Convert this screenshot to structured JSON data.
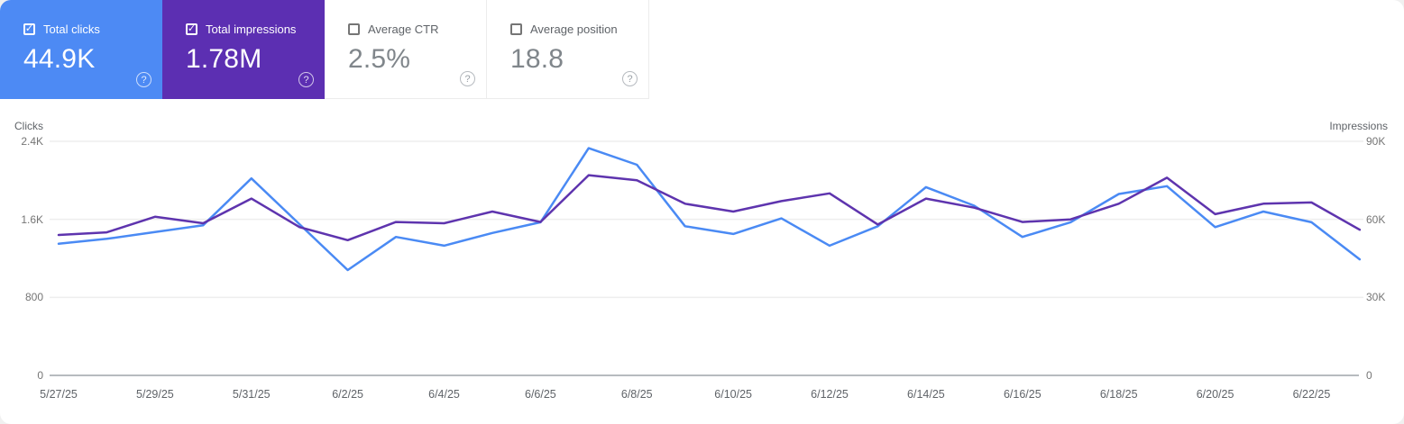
{
  "cards": [
    {
      "label": "Total clicks",
      "value": "44.9K",
      "checked": true,
      "bg": "#4d8af4",
      "help_icon": "?"
    },
    {
      "label": "Total impressions",
      "value": "1.78M",
      "checked": true,
      "bg": "#5c2fb2",
      "help_icon": "?"
    },
    {
      "label": "Average CTR",
      "value": "2.5%",
      "checked": false,
      "bg": "#ffffff",
      "help_icon": "?"
    },
    {
      "label": "Average position",
      "value": "18.8",
      "checked": false,
      "bg": "#ffffff",
      "help_icon": "?"
    }
  ],
  "chart_data": {
    "type": "line",
    "x": [
      "5/27/25",
      "5/28/25",
      "5/29/25",
      "5/30/25",
      "5/31/25",
      "6/1/25",
      "6/2/25",
      "6/3/25",
      "6/4/25",
      "6/5/25",
      "6/6/25",
      "6/7/25",
      "6/8/25",
      "6/9/25",
      "6/10/25",
      "6/11/25",
      "6/12/25",
      "6/13/25",
      "6/14/25",
      "6/15/25",
      "6/16/25",
      "6/17/25",
      "6/18/25",
      "6/19/25",
      "6/20/25",
      "6/21/25",
      "6/22/25",
      "6/23/25"
    ],
    "x_tick_labels": [
      "5/27/25",
      "5/29/25",
      "5/31/25",
      "6/2/25",
      "6/4/25",
      "6/6/25",
      "6/8/25",
      "6/10/25",
      "6/12/25",
      "6/14/25",
      "6/16/25",
      "6/18/25",
      "6/20/25",
      "6/22/25"
    ],
    "series": [
      {
        "name": "Clicks",
        "axis": "left",
        "color": "#4a8af4",
        "values": [
          1350,
          1400,
          1470,
          1540,
          2020,
          1550,
          1080,
          1420,
          1330,
          1460,
          1570,
          2330,
          2160,
          1530,
          1450,
          1610,
          1330,
          1530,
          1930,
          1740,
          1420,
          1570,
          1860,
          1940,
          1520,
          1680,
          1570,
          1190
        ]
      },
      {
        "name": "Impressions",
        "axis": "right",
        "color": "#5e34ae",
        "values": [
          54000,
          55000,
          61000,
          58500,
          68000,
          57000,
          52000,
          59000,
          58500,
          63000,
          59000,
          77000,
          75000,
          66000,
          63000,
          67000,
          70000,
          58000,
          68000,
          64500,
          59000,
          60000,
          66000,
          76000,
          62000,
          66000,
          66500,
          56000
        ]
      }
    ],
    "left_axis": {
      "title": "Clicks",
      "max": 2400,
      "ticks": [
        {
          "label": "2.4K",
          "value": 2400
        },
        {
          "label": "1.6K",
          "value": 1600
        },
        {
          "label": "800",
          "value": 800
        },
        {
          "label": "0",
          "value": 0
        }
      ]
    },
    "right_axis": {
      "title": "Impressions",
      "max": 90000,
      "ticks": [
        {
          "label": "90K",
          "value": 90000
        },
        {
          "label": "60K",
          "value": 60000
        },
        {
          "label": "30K",
          "value": 30000
        },
        {
          "label": "0",
          "value": 0
        }
      ]
    },
    "grid": "horizontal-only",
    "legend": "none"
  },
  "colors": {
    "clicks_accent": "#4a8af4",
    "impressions_accent": "#5e34ae",
    "gridline": "#eeeeee",
    "zero_axis": "#b7bbbf",
    "tick_text": "#5f6368"
  }
}
